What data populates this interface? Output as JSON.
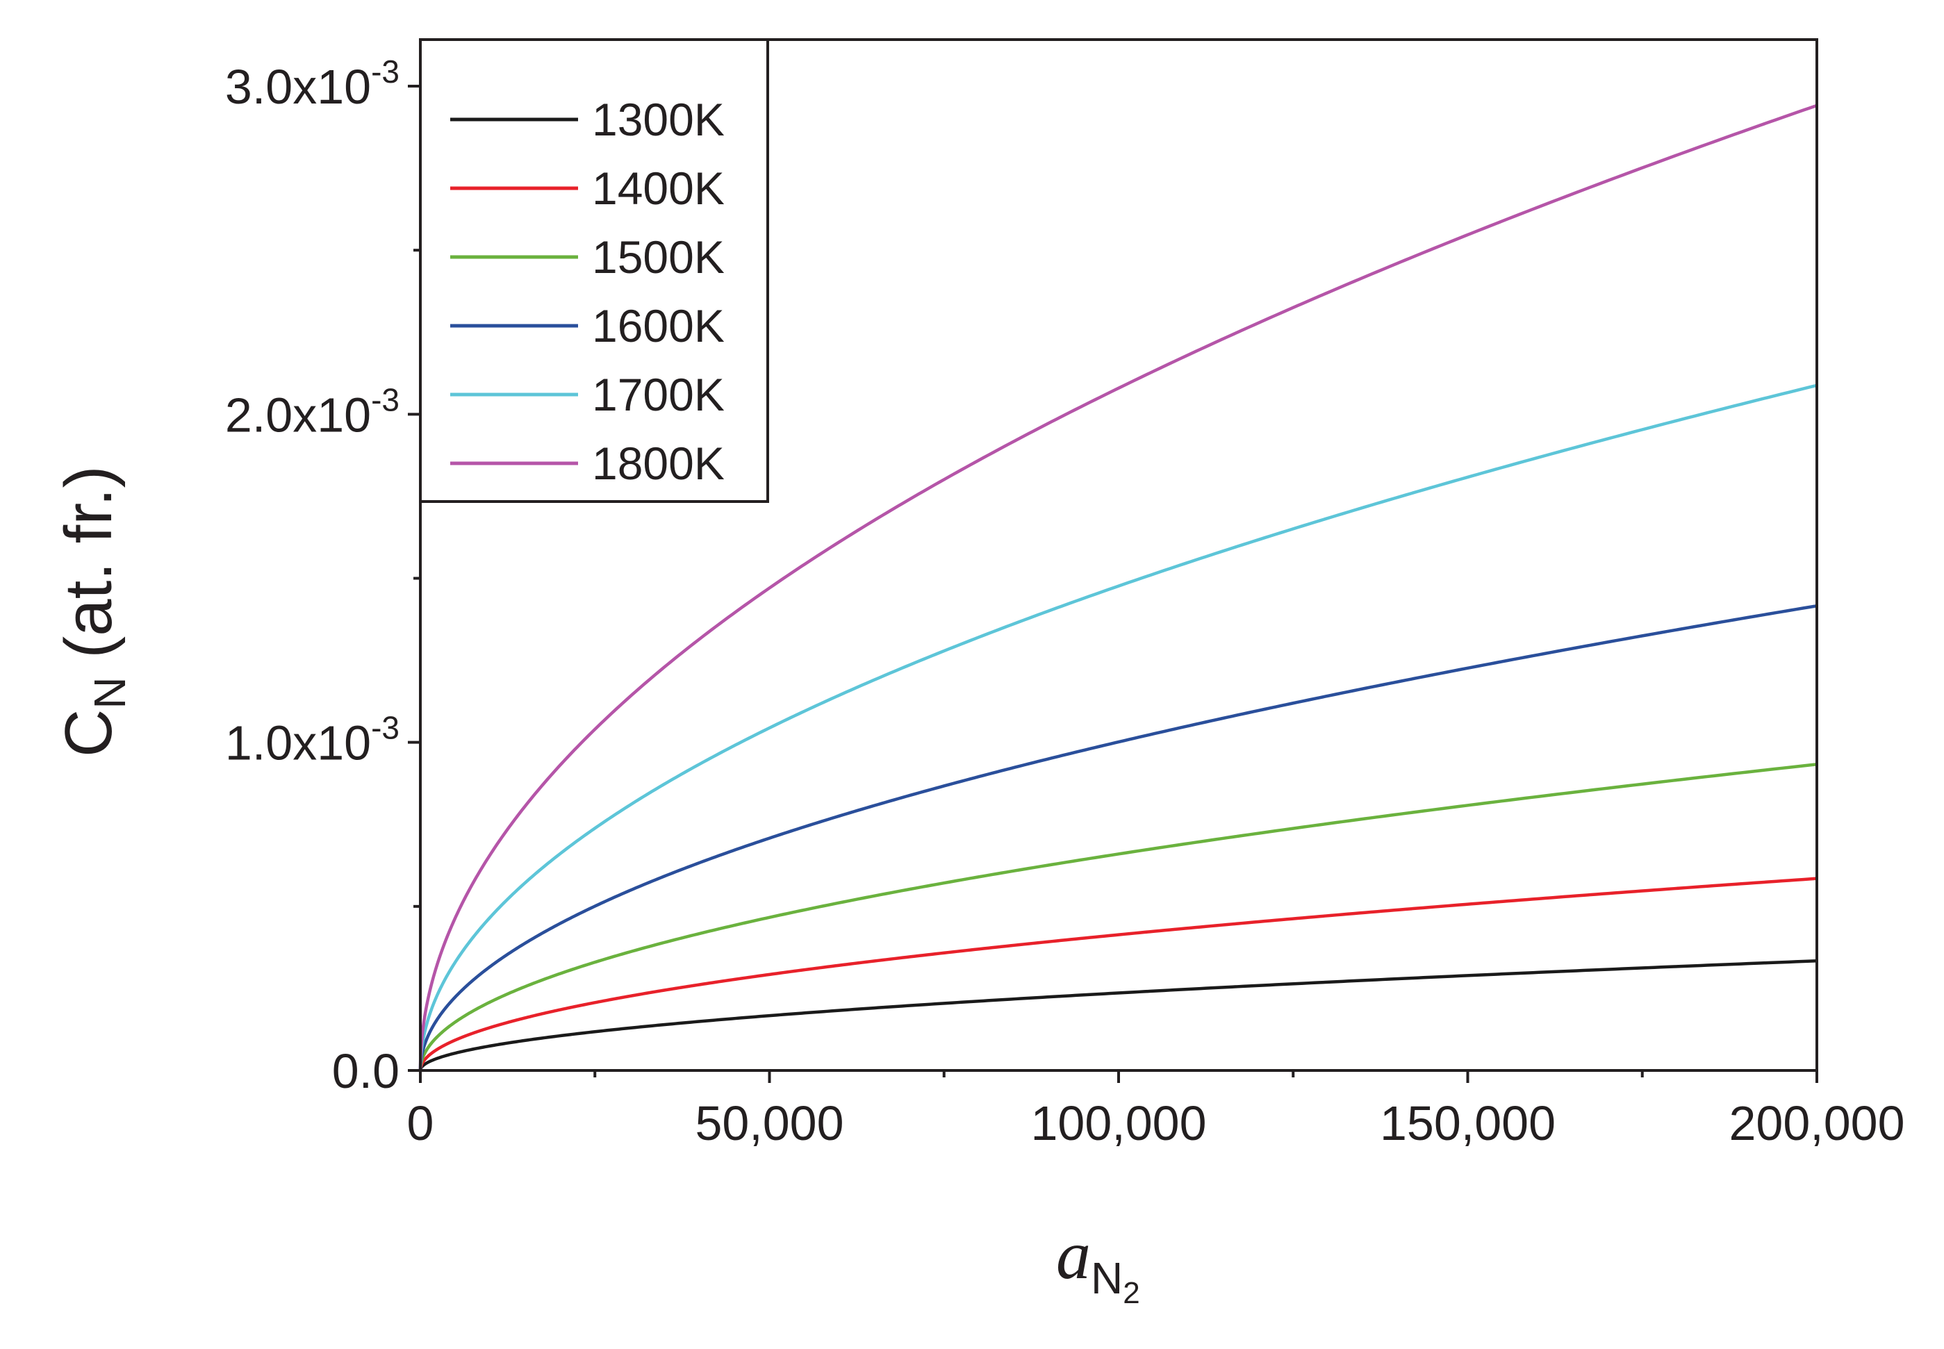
{
  "chart_data": {
    "type": "line",
    "title": "",
    "xlabel": "a",
    "xlabel_sub": "N",
    "xlabel_sub2": "2",
    "ylabel": "C",
    "ylabel_sub": "N",
    "ylabel_rest": " (at. fr.)",
    "xlim": [
      0,
      200000
    ],
    "ylim": [
      0,
      0.0032
    ],
    "x_ticks": [
      0,
      50000,
      100000,
      150000,
      200000
    ],
    "x_tick_labels": [
      "0",
      "50,000",
      "100,000",
      "150,000",
      "200,000"
    ],
    "y_ticks": [
      0,
      0.001,
      0.002,
      0.003
    ],
    "y_tick_labels": [
      {
        "base": "0.0",
        "exp": ""
      },
      {
        "base": "1.0x10",
        "exp": "-3"
      },
      {
        "base": "2.0x10",
        "exp": "-3"
      },
      {
        "base": "3.0x10",
        "exp": "-3"
      }
    ],
    "legend_position": "top-left",
    "series": [
      {
        "name": "1300K",
        "color": "#1a1a1a",
        "x": [
          0,
          25000,
          50000,
          100000,
          150000,
          200000
        ],
        "values": [
          0,
          0.000118,
          0.000167,
          0.000236,
          0.000289,
          0.000334
        ]
      },
      {
        "name": "1400K",
        "color": "#e8212a",
        "x": [
          0,
          25000,
          50000,
          100000,
          150000,
          200000
        ],
        "values": [
          0,
          0.000207,
          0.000293,
          0.000414,
          0.000507,
          0.000585
        ]
      },
      {
        "name": "1500K",
        "color": "#6ab23e",
        "x": [
          0,
          25000,
          50000,
          100000,
          150000,
          200000
        ],
        "values": [
          0,
          0.00033,
          0.000467,
          0.00066,
          0.000808,
          0.000933
        ]
      },
      {
        "name": "1600K",
        "color": "#2a4f9b",
        "x": [
          0,
          25000,
          50000,
          100000,
          150000,
          200000
        ],
        "values": [
          0,
          0.000501,
          0.000708,
          0.001001,
          0.001226,
          0.001416
        ]
      },
      {
        "name": "1700K",
        "color": "#5dc5d8",
        "x": [
          0,
          25000,
          50000,
          100000,
          150000,
          200000
        ],
        "values": [
          0,
          0.000738,
          0.001044,
          0.001476,
          0.001808,
          0.002088
        ]
      },
      {
        "name": "1800K",
        "color": "#b555a8",
        "x": [
          0,
          25000,
          50000,
          100000,
          150000,
          200000
        ],
        "values": [
          0,
          0.00104,
          0.001471,
          0.00208,
          0.002547,
          0.002941
        ]
      }
    ]
  }
}
